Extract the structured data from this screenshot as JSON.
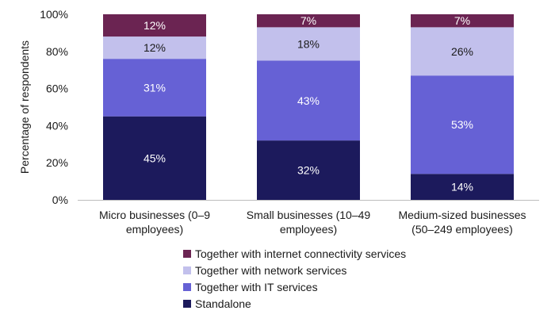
{
  "chart_data": {
    "type": "bar",
    "stacked": true,
    "title": "",
    "ylabel": "Percentage of respondents",
    "xlabel": "",
    "ylim": [
      0,
      100
    ],
    "yticks": [
      "0%",
      "20%",
      "40%",
      "60%",
      "80%",
      "100%"
    ],
    "categories": [
      [
        "Micro businesses (0–9",
        "employees)"
      ],
      [
        "Small businesses (10–49",
        "employees)"
      ],
      [
        "Medium-sized businesses",
        "(50–249 employees)"
      ]
    ],
    "series": [
      {
        "name": "Standalone",
        "color": "#1c1a5c",
        "label_color": "#ffffff",
        "values": [
          45,
          32,
          14
        ]
      },
      {
        "name": "Together with IT services",
        "color": "#6661d5",
        "label_color": "#ffffff",
        "values": [
          31,
          43,
          53
        ]
      },
      {
        "name": "Together with network services",
        "color": "#c2c0ec",
        "label_color": "#1a1a1a",
        "values": [
          12,
          18,
          26
        ]
      },
      {
        "name": "Together with internet connectivity services",
        "color": "#6b2452",
        "label_color": "#ffffff",
        "values": [
          12,
          7,
          7
        ]
      }
    ],
    "legend_position": "bottom",
    "legend_order": [
      "Together with internet connectivity services",
      "Together with network services",
      "Together with IT services",
      "Standalone"
    ],
    "grid": false
  }
}
